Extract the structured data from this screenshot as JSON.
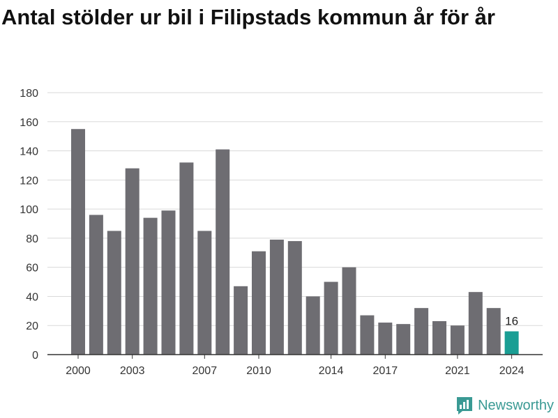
{
  "title": "Antal stölder ur bil i Filipstads kommun år för år",
  "brand": {
    "name": "Newsworthy"
  },
  "colors": {
    "bar": "#6e6d72",
    "highlight": "#1a9e94",
    "grid": "#d9d9d9",
    "axis": "#333333"
  },
  "chart_data": {
    "type": "bar",
    "title": "Antal stölder ur bil i Filipstads kommun år för år",
    "xlabel": "",
    "ylabel": "",
    "ylim": [
      0,
      180
    ],
    "yticks": [
      0,
      20,
      40,
      60,
      80,
      100,
      120,
      140,
      160,
      180
    ],
    "xtick_labels": [
      "2000",
      "2003",
      "2007",
      "2010",
      "2014",
      "2017",
      "2021",
      "2024"
    ],
    "grid": true,
    "categories": [
      "2000",
      "2001",
      "2002",
      "2003",
      "2004",
      "2005",
      "2006",
      "2007",
      "2008",
      "2009",
      "2010",
      "2011",
      "2012",
      "2013",
      "2014",
      "2015",
      "2016",
      "2017",
      "2018",
      "2019",
      "2020",
      "2021",
      "2022",
      "2023",
      "2024"
    ],
    "values": [
      155,
      96,
      85,
      128,
      94,
      99,
      132,
      85,
      141,
      47,
      71,
      79,
      78,
      40,
      50,
      60,
      27,
      22,
      21,
      32,
      23,
      20,
      43,
      32,
      16
    ],
    "highlight": {
      "category": "2024",
      "label": "16"
    }
  }
}
